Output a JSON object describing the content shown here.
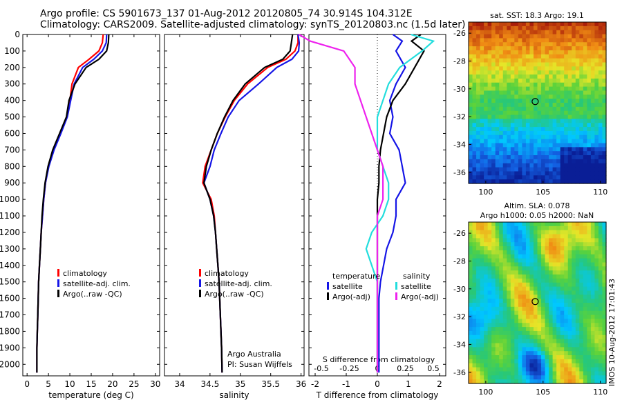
{
  "header": {
    "title_line1": "Argo profile: CS 5901673_137 01-Aug-2012 20120805_74 30.914S 104.312E",
    "title_line2": "Climatology: CARS2009. Satellite-adjusted climatology: synTS_20120803.nc (1.5d later)"
  },
  "stamp": "IMOS 10-Aug-2012 17:01:43",
  "colors": {
    "climatology": "#ff0000",
    "satellite": "#1515e6",
    "argo": "#000000",
    "sat_salinity": "#22dddd",
    "argo_salinity": "#ee22ee"
  },
  "chart_data": [
    {
      "id": "temperature",
      "type": "line",
      "xlabel": "temperature (deg C)",
      "ylabel": "",
      "xlim": [
        -1,
        31
      ],
      "ylim": [
        2070,
        0
      ],
      "xticks": [
        0,
        5,
        10,
        15,
        20,
        25,
        30
      ],
      "yticks": [
        0,
        100,
        200,
        300,
        400,
        500,
        600,
        700,
        800,
        900,
        1000,
        1100,
        1200,
        1300,
        1400,
        1500,
        1600,
        1700,
        1800,
        1900,
        2000
      ],
      "legend": [
        "climatology",
        "satellite-adj. clim.",
        "Argo(..raw -QC)"
      ],
      "legend_position": "lower-right",
      "series": [
        {
          "name": "climatology",
          "color": "#ff0000",
          "x": [
            17.8,
            17.6,
            16.8,
            14.5,
            12.0,
            10.5,
            10.0,
            9.3,
            7.8,
            6.2,
            5.0,
            4.3,
            3.9,
            3.6,
            3.3,
            3.1,
            2.9,
            2.7,
            2.6,
            2.5,
            2.4,
            2.3,
            2.3
          ],
          "y": [
            0,
            50,
            100,
            150,
            200,
            300,
            400,
            500,
            600,
            700,
            800,
            900,
            1000,
            1100,
            1200,
            1300,
            1400,
            1500,
            1600,
            1700,
            1800,
            1900,
            2050
          ]
        },
        {
          "name": "satellite-adj. clim.",
          "color": "#1515e6",
          "x": [
            18.6,
            18.5,
            17.6,
            15.6,
            13.0,
            11.0,
            10.2,
            9.4,
            7.9,
            6.3,
            5.1,
            4.3,
            3.9,
            3.6,
            3.3,
            3.1,
            2.9,
            2.7,
            2.6,
            2.5,
            2.4,
            2.3,
            2.3
          ],
          "y": [
            0,
            50,
            100,
            150,
            200,
            300,
            400,
            500,
            600,
            700,
            800,
            900,
            1000,
            1100,
            1200,
            1300,
            1400,
            1500,
            1600,
            1700,
            1800,
            1900,
            2050
          ]
        },
        {
          "name": "Argo(..raw -QC)",
          "color": "#000000",
          "x": [
            19.1,
            19.0,
            18.6,
            16.8,
            13.8,
            11.2,
            9.8,
            9.2,
            7.6,
            6.0,
            4.9,
            4.2,
            3.8,
            3.5,
            3.3,
            3.1,
            2.9,
            2.7,
            2.6,
            2.5,
            2.4,
            2.3,
            2.3
          ],
          "y": [
            0,
            50,
            100,
            150,
            200,
            300,
            400,
            500,
            600,
            700,
            800,
            900,
            1000,
            1100,
            1200,
            1300,
            1400,
            1500,
            1600,
            1700,
            1800,
            1900,
            2050
          ]
        }
      ]
    },
    {
      "id": "salinity",
      "type": "line",
      "xlabel": "salinity",
      "ylabel": "",
      "xlim": [
        33.75,
        36.05
      ],
      "ylim": [
        2070,
        0
      ],
      "xticks": [
        34,
        34.5,
        35,
        35.5,
        36
      ],
      "xtick_labels": [
        "34",
        "34.5",
        "35",
        "35.5",
        "36"
      ],
      "legend": [
        "climatology",
        "satellite-adj. clim.",
        "Argo(..raw -QC)"
      ],
      "legend_position": "lower-right",
      "annotations": [
        "Argo Australia",
        "PI: Susan Wijffels"
      ],
      "series": [
        {
          "name": "climatology",
          "color": "#ff0000",
          "x": [
            35.95,
            35.95,
            35.9,
            35.75,
            35.45,
            35.12,
            34.9,
            34.75,
            34.62,
            34.52,
            34.42,
            34.38,
            34.52,
            34.57,
            34.59,
            34.61,
            34.63,
            34.65,
            34.66,
            34.67,
            34.68,
            34.69,
            34.7
          ],
          "y": [
            0,
            50,
            100,
            150,
            200,
            300,
            400,
            500,
            600,
            700,
            800,
            900,
            1000,
            1100,
            1200,
            1300,
            1400,
            1500,
            1600,
            1700,
            1800,
            1900,
            2050
          ]
        },
        {
          "name": "satellite-adj. clim.",
          "color": "#1515e6",
          "x": [
            35.95,
            35.97,
            35.96,
            35.85,
            35.6,
            35.3,
            34.98,
            34.8,
            34.68,
            34.57,
            34.5,
            34.4,
            34.5,
            34.56,
            34.59,
            34.61,
            34.63,
            34.65,
            34.66,
            34.67,
            34.68,
            34.69,
            34.7
          ],
          "y": [
            0,
            50,
            100,
            150,
            200,
            300,
            400,
            500,
            600,
            700,
            800,
            900,
            1000,
            1100,
            1200,
            1300,
            1400,
            1500,
            1600,
            1700,
            1800,
            1900,
            2050
          ]
        },
        {
          "name": "Argo(..raw -QC)",
          "color": "#000000",
          "x": [
            35.86,
            35.84,
            35.82,
            35.7,
            35.4,
            35.08,
            34.88,
            34.74,
            34.62,
            34.52,
            34.44,
            34.4,
            34.5,
            34.56,
            34.59,
            34.61,
            34.63,
            34.65,
            34.66,
            34.67,
            34.68,
            34.69,
            34.7
          ],
          "y": [
            0,
            50,
            100,
            150,
            200,
            300,
            400,
            500,
            600,
            700,
            800,
            900,
            1000,
            1100,
            1200,
            1300,
            1400,
            1500,
            1600,
            1700,
            1800,
            1900,
            2050
          ]
        }
      ]
    },
    {
      "id": "difference",
      "type": "line",
      "xlabel": "T difference from climatology",
      "xlabel_top": "S difference from climatology",
      "xlim": [
        -2.2,
        2.2
      ],
      "ylim": [
        2070,
        0
      ],
      "xticks": [
        -2,
        -1,
        0,
        1,
        2
      ],
      "s_xticks": [
        -0.5,
        -0.25,
        0,
        0.25,
        0.5
      ],
      "s_xtick_labels": [
        "-0.5",
        "-0.25",
        "0",
        "0.25",
        "0.5"
      ],
      "legend_groups": [
        {
          "title": "temperature",
          "entries": [
            "satellite",
            "Argo(-adj)"
          ]
        },
        {
          "title": "salinity",
          "entries": [
            "satellite",
            "Argo(-adj)"
          ]
        }
      ],
      "series": [
        {
          "name": "temperature satellite",
          "color": "#1515e6",
          "x": [
            0.5,
            0.8,
            0.6,
            0.9,
            0.6,
            0.4,
            0.5,
            0.4,
            0.7,
            0.8,
            0.9,
            0.6,
            0.6,
            0.5,
            0.3,
            0.2,
            0.1,
            0.05,
            0.05,
            0.05,
            0.05,
            0.05
          ],
          "y": [
            0,
            40,
            100,
            200,
            300,
            400,
            500,
            600,
            700,
            800,
            900,
            1000,
            1100,
            1200,
            1300,
            1400,
            1500,
            1600,
            1700,
            1800,
            1900,
            2050
          ]
        },
        {
          "name": "temperature Argo(-adj)",
          "color": "#000000",
          "x": [
            1.4,
            1.1,
            1.5,
            1.2,
            0.9,
            0.5,
            0.3,
            0.2,
            0.1,
            0.05,
            0.05,
            0.0,
            0.0,
            0.0,
            0.0,
            0.0,
            0.0,
            0.0,
            0.0,
            0.0,
            0.0,
            0.0
          ],
          "y": [
            0,
            40,
            100,
            200,
            300,
            400,
            500,
            600,
            700,
            800,
            900,
            1000,
            1100,
            1200,
            1300,
            1400,
            1500,
            1600,
            1700,
            1800,
            1900,
            2050
          ]
        },
        {
          "name": "salinity satellite",
          "color": "#22dddd",
          "x": [
            0.3,
            0.5,
            0.4,
            0.2,
            0.1,
            0.05,
            0.0,
            0.0,
            0.0,
            0.05,
            0.1,
            0.1,
            0.05,
            -0.05,
            -0.1,
            -0.05,
            0.0,
            0.0,
            0.0,
            0.0,
            0.0,
            0.0
          ],
          "y": [
            0,
            40,
            100,
            200,
            300,
            400,
            500,
            600,
            700,
            800,
            900,
            1000,
            1100,
            1200,
            1300,
            1400,
            1500,
            1600,
            1700,
            1800,
            1900,
            2050
          ]
        },
        {
          "name": "salinity Argo(-adj)",
          "color": "#ee22ee",
          "x": [
            -0.7,
            -0.6,
            -0.3,
            -0.2,
            -0.2,
            -0.15,
            -0.1,
            -0.05,
            0.0,
            0.05,
            0.05,
            0.05,
            0.0,
            0.0,
            0.0,
            0.0,
            0.0,
            0.0,
            0.0,
            0.0,
            0.0,
            0.0
          ],
          "y": [
            0,
            40,
            100,
            200,
            300,
            400,
            500,
            600,
            700,
            800,
            900,
            1000,
            1100,
            1200,
            1300,
            1400,
            1500,
            1600,
            1700,
            1800,
            1900,
            2050
          ]
        }
      ]
    },
    {
      "id": "sst_map",
      "type": "heatmap",
      "title": "sat. SST: 18.3 Argo: 19.1",
      "xlim": [
        98.5,
        110.5
      ],
      "ylim": [
        -36.8,
        -25.2
      ],
      "xticks": [
        100,
        105,
        110
      ],
      "yticks": [
        -26,
        -28,
        -30,
        -32,
        -34,
        -36
      ],
      "marker": {
        "lon": 104.312,
        "lat": -30.914
      }
    },
    {
      "id": "sla_map",
      "type": "heatmap",
      "title": "Altim. SLA: 0.078",
      "subtitle": "Argo h1000: 0.05 h2000: NaN",
      "xlim": [
        98.5,
        110.5
      ],
      "ylim": [
        -36.8,
        -25.2
      ],
      "xticks": [
        100,
        105,
        110
      ],
      "yticks": [
        -26,
        -28,
        -30,
        -32,
        -34,
        -36
      ],
      "marker": {
        "lon": 104.312,
        "lat": -30.914
      }
    }
  ]
}
